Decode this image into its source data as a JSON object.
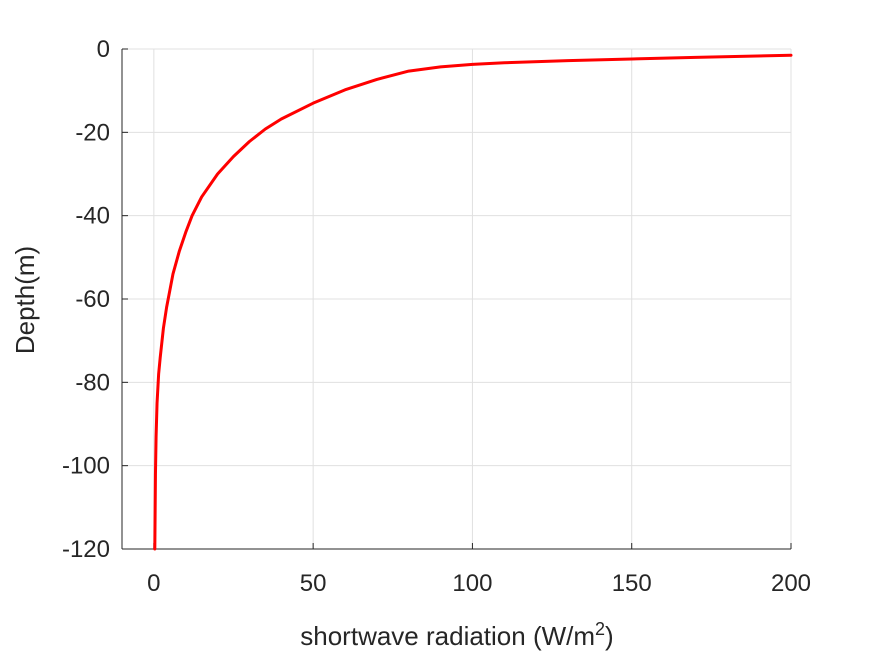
{
  "chart_data": {
    "type": "line",
    "xlabel": "shortwave radiation (W/m",
    "xlabel_superscript": "2",
    "xlabel_suffix": ")",
    "ylabel": "Depth(m)",
    "xlim": [
      -10,
      200
    ],
    "ylim": [
      -120,
      0
    ],
    "x_ticks": [
      0,
      50,
      100,
      150,
      200
    ],
    "x_tick_labels": [
      "0",
      "50",
      "100",
      "150",
      "200"
    ],
    "y_ticks": [
      0,
      -20,
      -40,
      -60,
      -80,
      -100,
      -120
    ],
    "y_tick_labels": [
      "0",
      "-20",
      "-40",
      "-60",
      "-80",
      "-100",
      "-120"
    ],
    "grid": true,
    "series": [
      {
        "color": "#ff0000",
        "x": [
          200,
          170,
          150,
          130,
          110,
          100,
          90,
          80,
          70,
          60,
          50,
          40,
          35,
          30,
          25,
          20,
          15,
          12,
          10,
          8,
          6,
          5,
          4,
          3,
          2,
          1.5,
          1,
          0.7,
          0.5,
          0.3
        ],
        "y": [
          -1.5,
          -2.0,
          -2.4,
          -2.8,
          -3.3,
          -3.7,
          -4.3,
          -5.3,
          -7.3,
          -9.8,
          -13.0,
          -16.8,
          -19.2,
          -22.2,
          -25.8,
          -30.0,
          -35.5,
          -40.0,
          -44.0,
          -48.5,
          -54.0,
          -58.0,
          -62.0,
          -67.0,
          -74.0,
          -78.0,
          -85.0,
          -93.0,
          -102.0,
          -120.0
        ]
      }
    ]
  }
}
